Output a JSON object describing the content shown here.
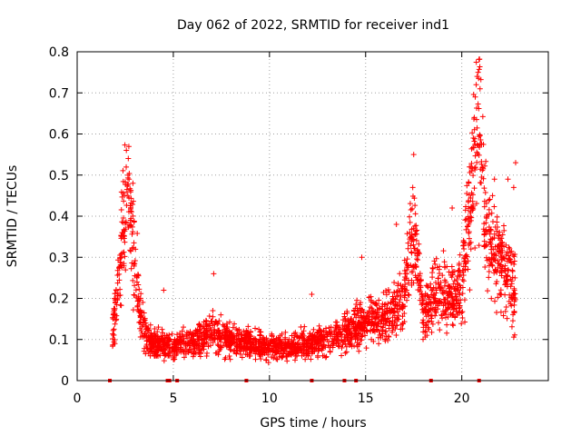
{
  "chart_data": {
    "type": "scatter",
    "title": "Day 062 of 2022, SRMTID for receiver ind1",
    "xlabel": "GPS time / hours",
    "ylabel": "SRMTID / TECUs",
    "xlim": [
      0,
      24.5
    ],
    "ylim": [
      0,
      0.8
    ],
    "x_ticks": [
      0,
      5,
      10,
      15,
      20
    ],
    "x_tick_labels": [
      "0",
      "5",
      "10",
      "15",
      "20"
    ],
    "y_ticks": [
      0,
      0.1,
      0.2,
      0.3,
      0.4,
      0.5,
      0.6,
      0.7,
      0.8
    ],
    "y_tick_labels": [
      "0",
      "0.1",
      "0.2",
      "0.3",
      "0.4",
      "0.5",
      "0.6",
      "0.7",
      "0.8"
    ],
    "grid": true,
    "series_color": "#ff0000",
    "marker": "plus",
    "envelope": {
      "description": "approximate typical SRMTID level vs GPS time (hours)",
      "x": [
        1.8,
        2.1,
        2.4,
        2.7,
        3.0,
        3.3,
        3.8,
        4.5,
        5.0,
        5.5,
        6.5,
        7.0,
        8.0,
        9.0,
        10.0,
        11.0,
        12.0,
        13.0,
        14.0,
        15.0,
        16.0,
        17.0,
        17.4,
        17.7,
        18.0,
        18.5,
        19.0,
        19.5,
        20.0,
        20.3,
        20.7,
        20.9,
        21.2,
        21.5,
        22.0,
        22.5,
        22.8
      ],
      "y": [
        0.1,
        0.22,
        0.38,
        0.46,
        0.3,
        0.15,
        0.09,
        0.09,
        0.08,
        0.09,
        0.1,
        0.12,
        0.1,
        0.09,
        0.08,
        0.08,
        0.09,
        0.1,
        0.12,
        0.14,
        0.15,
        0.2,
        0.35,
        0.3,
        0.15,
        0.2,
        0.22,
        0.2,
        0.22,
        0.35,
        0.55,
        0.65,
        0.4,
        0.32,
        0.3,
        0.25,
        0.2
      ]
    },
    "spread_factor": 0.35,
    "outliers": [
      {
        "x": 2.7,
        "y": 0.49
      },
      {
        "x": 2.9,
        "y": 0.48
      },
      {
        "x": 17.5,
        "y": 0.55
      },
      {
        "x": 17.45,
        "y": 0.47
      },
      {
        "x": 20.4,
        "y": 0.52
      },
      {
        "x": 20.5,
        "y": 0.51
      },
      {
        "x": 20.8,
        "y": 0.74
      },
      {
        "x": 20.85,
        "y": 0.75
      },
      {
        "x": 20.75,
        "y": 0.72
      },
      {
        "x": 20.7,
        "y": 0.69
      },
      {
        "x": 20.65,
        "y": 0.64
      },
      {
        "x": 20.6,
        "y": 0.59
      },
      {
        "x": 20.95,
        "y": 0.71
      },
      {
        "x": 21.7,
        "y": 0.49
      },
      {
        "x": 22.4,
        "y": 0.49
      },
      {
        "x": 22.8,
        "y": 0.53
      },
      {
        "x": 7.1,
        "y": 0.26
      },
      {
        "x": 4.5,
        "y": 0.22
      },
      {
        "x": 12.2,
        "y": 0.21
      },
      {
        "x": 14.8,
        "y": 0.3
      },
      {
        "x": 16.6,
        "y": 0.38
      },
      {
        "x": 19.5,
        "y": 0.42
      },
      {
        "x": 22.7,
        "y": 0.47
      },
      {
        "x": 21.6,
        "y": 0.45
      }
    ],
    "zero_markers": [
      1.7,
      4.7,
      4.8,
      5.2,
      8.8,
      12.2,
      13.9,
      14.5,
      18.4,
      20.9
    ]
  }
}
